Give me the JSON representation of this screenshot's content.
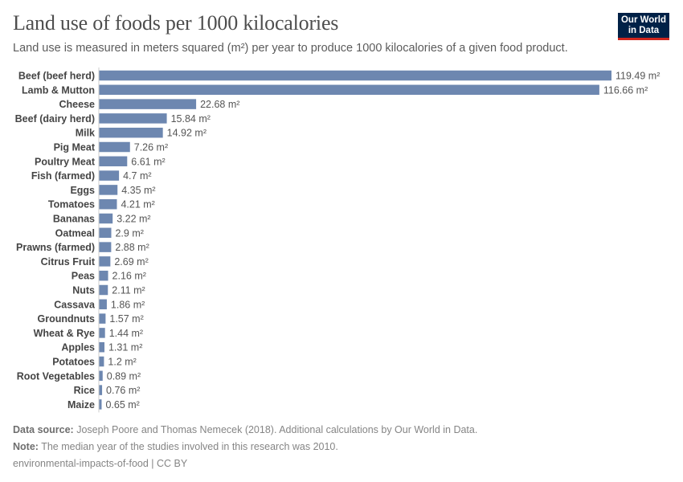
{
  "header": {
    "title": "Land use of foods per 1000 kilocalories",
    "subtitle": "Land use is measured in meters squared (m²) per year to produce 1000 kilocalories of a given food product.",
    "logo": "Our World in Data"
  },
  "chart_data": {
    "type": "bar",
    "orientation": "horizontal",
    "title": "Land use of foods per 1000 kilocalories",
    "unit": "m²",
    "bar_color": "#6d87b0",
    "categories": [
      "Beef (beef herd)",
      "Lamb & Mutton",
      "Cheese",
      "Beef (dairy herd)",
      "Milk",
      "Pig Meat",
      "Poultry Meat",
      "Fish (farmed)",
      "Eggs",
      "Tomatoes",
      "Bananas",
      "Oatmeal",
      "Prawns (farmed)",
      "Citrus Fruit",
      "Peas",
      "Nuts",
      "Cassava",
      "Groundnuts",
      "Wheat & Rye",
      "Apples",
      "Potatoes",
      "Root Vegetables",
      "Rice",
      "Maize"
    ],
    "values": [
      119.49,
      116.66,
      22.68,
      15.84,
      14.92,
      7.26,
      6.61,
      4.7,
      4.35,
      4.21,
      3.22,
      2.9,
      2.88,
      2.69,
      2.16,
      2.11,
      1.86,
      1.57,
      1.44,
      1.31,
      1.2,
      0.89,
      0.76,
      0.65
    ],
    "data_labels": [
      "119.49 m²",
      "116.66 m²",
      "22.68 m²",
      "15.84 m²",
      "14.92 m²",
      "7.26 m²",
      "6.61 m²",
      "4.7 m²",
      "4.35 m²",
      "4.21 m²",
      "3.22 m²",
      "2.9 m²",
      "2.88 m²",
      "2.69 m²",
      "2.16 m²",
      "2.11 m²",
      "1.86 m²",
      "1.57 m²",
      "1.44 m²",
      "1.31 m²",
      "1.2 m²",
      "0.89 m²",
      "0.76 m²",
      "0.65 m²"
    ]
  },
  "footer": {
    "source_label": "Data source:",
    "source_text": " Joseph Poore and Thomas Nemecek (2018). Additional calculations by Our World in Data.",
    "note_label": "Note:",
    "note_text": " The median year of the studies involved in this research was 2010.",
    "license": "environmental-impacts-of-food | CC BY"
  }
}
